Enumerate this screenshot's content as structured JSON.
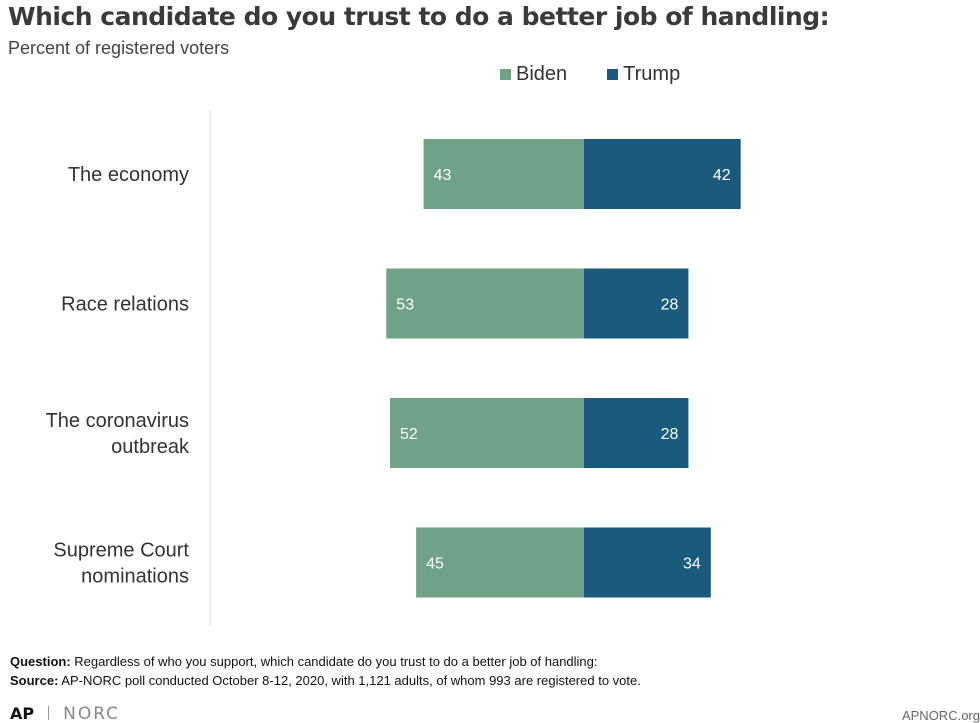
{
  "title": "Which candidate do you trust to do a better job of handling:",
  "subtitle": "Percent of registered voters",
  "colors": {
    "biden": "#6fa286",
    "trump": "#1a5b7d"
  },
  "chart_data": {
    "type": "bar",
    "orientation": "horizontal-diverging",
    "categories": [
      [
        "The economy"
      ],
      [
        "Race relations"
      ],
      [
        "The coronavirus",
        "outbreak"
      ],
      [
        "Supreme Court",
        "nominations"
      ]
    ],
    "series": [
      {
        "name": "Biden",
        "values": [
          43,
          53,
          52,
          45
        ]
      },
      {
        "name": "Trump",
        "values": [
          42,
          28,
          28,
          34
        ]
      }
    ],
    "legend_position": "top-right",
    "grid": false
  },
  "footer": {
    "question_label": "Question:",
    "question_text": " Regardless of who you support, which candidate do you trust to do a better job of handling:",
    "source_label": "Source:",
    "source_text": " AP-NORC poll conducted October 8-12, 2020, with 1,121 adults, of whom 993 are registered to vote."
  },
  "logo": {
    "left": "AP",
    "right": "NORC"
  },
  "site": "APNORC.org"
}
